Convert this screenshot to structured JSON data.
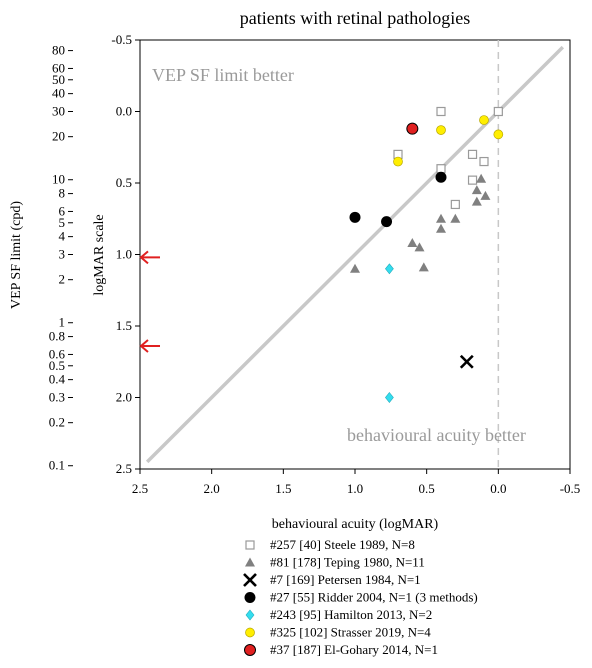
{
  "chart_data": {
    "type": "scatter",
    "title": "patients with retinal pathologies",
    "xlabel": "behavioural acuity (logMAR)",
    "ylabel_right": "logMAR scale",
    "ylabel_left": "VEP SF limit (cpd)",
    "xlim": [
      2.5,
      -0.5
    ],
    "ylim": [
      -0.5,
      2.5
    ],
    "x_ticks": [
      "2.5",
      "2.0",
      "1.5",
      "1.0",
      "0.5",
      "0.0",
      "-0.5"
    ],
    "x_tick_values": [
      2.5,
      2.0,
      1.5,
      1.0,
      0.5,
      0.0,
      -0.5
    ],
    "y_ticks": [
      "-0.5",
      "0.0",
      "0.5",
      "1.0",
      "1.5",
      "2.0",
      "2.5"
    ],
    "y_tick_values": [
      -0.5,
      0.0,
      0.5,
      1.0,
      1.5,
      2.0,
      2.5
    ],
    "cpd_ticks": [
      "80",
      "60",
      "50",
      "40",
      "30",
      "20",
      "10",
      "8",
      "6",
      "5",
      "4",
      "3",
      "2",
      "1",
      "0.8",
      "0.6",
      "0.5",
      "0.4",
      "0.3",
      "0.2",
      "0.1"
    ],
    "cpd_tick_values": [
      80,
      60,
      50,
      40,
      30,
      20,
      10,
      8,
      6,
      5,
      4,
      3,
      2,
      1,
      0.8,
      0.6,
      0.5,
      0.4,
      0.3,
      0.2,
      0.1
    ],
    "region_labels": [
      "VEP SF limit better",
      "behavioural acuity better"
    ],
    "identity_line": {
      "from": [
        2.45,
        2.45
      ],
      "to": [
        -0.45,
        -0.45
      ],
      "color": "#c8c8c8"
    },
    "arrows": {
      "color": "#e02020",
      "y_values": [
        1.02,
        1.64
      ]
    },
    "series": [
      {
        "name": "#257 [40] Steele 1989, N=8",
        "marker": "open-square",
        "color": "#9a9a9a",
        "points": [
          [
            0.4,
            0.0
          ],
          [
            0.0,
            0.0
          ],
          [
            0.7,
            0.3
          ],
          [
            0.4,
            0.4
          ],
          [
            0.18,
            0.3
          ],
          [
            0.1,
            0.35
          ],
          [
            0.18,
            0.48
          ],
          [
            0.3,
            0.65
          ]
        ]
      },
      {
        "name": "#81 [178] Teping 1980, N=11",
        "marker": "triangle",
        "color": "#808080",
        "points": [
          [
            0.12,
            0.47
          ],
          [
            0.15,
            0.55
          ],
          [
            0.09,
            0.59
          ],
          [
            0.15,
            0.63
          ],
          [
            0.4,
            0.75
          ],
          [
            0.3,
            0.75
          ],
          [
            0.4,
            0.82
          ],
          [
            0.6,
            0.92
          ],
          [
            0.55,
            0.95
          ],
          [
            1.0,
            1.1
          ],
          [
            0.52,
            1.09
          ]
        ]
      },
      {
        "name": "#7 [169] Petersen 1984, N=1",
        "marker": "cross",
        "color": "#000000",
        "points": [
          [
            0.22,
            1.75
          ]
        ]
      },
      {
        "name": "#27 [55] Ridder 2004, N=1 (3 methods)",
        "marker": "filled-circle",
        "color": "#000000",
        "points": [
          [
            1.0,
            0.74
          ],
          [
            0.78,
            0.77
          ],
          [
            0.4,
            0.46
          ]
        ]
      },
      {
        "name": "#243 [95] Hamilton 2013, N=2",
        "marker": "diamond",
        "color": "#33ddee",
        "points": [
          [
            0.76,
            1.1
          ],
          [
            0.76,
            2.0
          ]
        ]
      },
      {
        "name": "#325 [102] Strasser 2019, N=4",
        "marker": "yellow-circle",
        "color": "#ffee00",
        "points": [
          [
            0.4,
            0.13
          ],
          [
            0.7,
            0.35
          ],
          [
            0.1,
            0.06
          ],
          [
            0.0,
            0.16
          ]
        ]
      },
      {
        "name": "#37 [187] El-Gohary 2014, N=1",
        "marker": "red-circle",
        "color": "#e02020",
        "points": [
          [
            0.6,
            0.12
          ]
        ]
      }
    ]
  }
}
